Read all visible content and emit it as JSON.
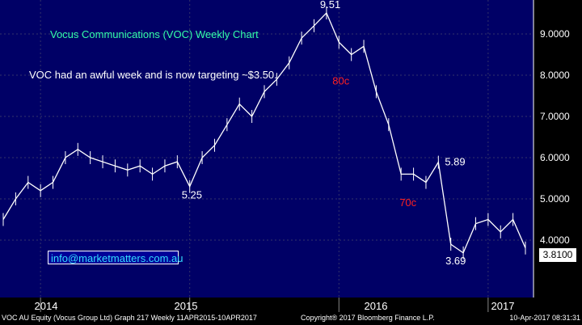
{
  "chart_data": {
    "type": "line",
    "title": "Vocus Communications (VOC) Weekly Chart",
    "subtitle": "VOC had an awful week and is now targeting ~$3.50.",
    "x_labels": [
      "2014",
      "2015",
      "2016",
      "2017"
    ],
    "y_ticks": [
      "4.0000",
      "5.0000",
      "6.0000",
      "7.0000",
      "8.0000",
      "9.0000"
    ],
    "ylim": [
      3.3,
      10.0
    ],
    "last_price": "3.8100",
    "x": [
      "2013-10",
      "2013-11",
      "2013-12",
      "2014-01",
      "2014-02",
      "2014-03",
      "2014-04",
      "2014-05",
      "2014-06",
      "2014-07",
      "2014-08",
      "2014-09",
      "2014-10",
      "2014-11",
      "2014-12",
      "2015-01",
      "2015-02",
      "2015-03",
      "2015-04",
      "2015-05",
      "2015-06",
      "2015-07",
      "2015-08",
      "2015-09",
      "2015-10",
      "2015-11",
      "2015-12",
      "2016-01",
      "2016-02",
      "2016-03",
      "2016-04",
      "2016-05",
      "2016-06",
      "2016-07",
      "2016-08",
      "2016-09",
      "2016-10",
      "2016-11",
      "2016-12",
      "2017-01",
      "2017-02",
      "2017-03",
      "2017-04"
    ],
    "series": [
      {
        "values": [
          4.5,
          5.0,
          5.4,
          5.2,
          5.4,
          6.0,
          6.2,
          6.0,
          5.9,
          5.8,
          5.7,
          5.8,
          5.6,
          5.8,
          5.9,
          5.3,
          6.0,
          6.3,
          6.8,
          7.3,
          7.0,
          7.6,
          7.9,
          8.3,
          8.9,
          9.2,
          9.51,
          8.8,
          8.5,
          8.7,
          7.6,
          6.8,
          5.6,
          5.6,
          5.4,
          5.89,
          3.9,
          3.69,
          4.4,
          4.5,
          4.2,
          4.5,
          3.81
        ]
      }
    ],
    "annotations": [
      {
        "text": "9.51",
        "x": "2015-12",
        "y": 9.51,
        "color": "#ffffff"
      },
      {
        "text": "80c",
        "x": "2016-01",
        "y": 8.05,
        "color": "#ff2020"
      },
      {
        "text": "5.25",
        "x": "2015-01",
        "y": 5.25,
        "color": "#ffffff"
      },
      {
        "text": "70c",
        "x": "2016-06",
        "y": 5.1,
        "color": "#ff2020"
      },
      {
        "text": "5.89",
        "x": "2016-09",
        "y": 5.89,
        "color": "#ffffff"
      },
      {
        "text": "3.69",
        "x": "2016-11",
        "y": 3.69,
        "color": "#ffffff"
      }
    ]
  },
  "email": "info@marketmatters.com.au",
  "footer": {
    "left": "VOC AU Equity (Vocus Group Ltd) Graph 217  Weekly 11APR2015-10APR2017",
    "center": "Copyright® 2017 Bloomberg Finance L.P.",
    "right": "10-Apr-2017 08:31:31"
  },
  "colors": {
    "plot_background": "#000066",
    "price": "#ffffff",
    "title": "#33ffaa",
    "annotation_red": "#ff2020"
  }
}
